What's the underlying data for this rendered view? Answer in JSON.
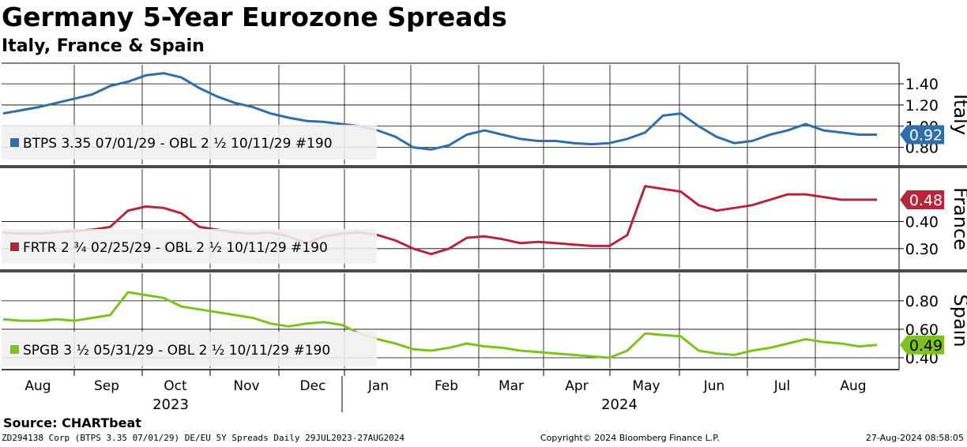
{
  "title": "Germany 5-Year Eurozone Spreads",
  "subtitle": "Italy, France & Spain",
  "source": "Source: CHARTbeat",
  "footer": {
    "left": "ZD294138 Corp (BTPS 3.35 07/01/29) DE/EU 5Y Spreads  Daily 29JUL2023-27AUG2024",
    "center": "Copyright© 2024 Bloomberg Finance L.P.",
    "right": "27-Aug-2024 08:58:05"
  },
  "chart_data": {
    "type": "line",
    "x_axis": {
      "months": [
        "Aug",
        "Sep",
        "Oct",
        "Nov",
        "Dec",
        "Jan",
        "Feb",
        "Mar",
        "Apr",
        "May",
        "Jun",
        "Jul",
        "Aug"
      ],
      "years": [
        "2023",
        "2024"
      ],
      "range": [
        "2023-07-29",
        "2024-08-27"
      ]
    },
    "panels": [
      {
        "name": "Italy",
        "legend": "BTPS 3.35 07/01/29 - OBL 2 ½ 10/11/29 #190",
        "color": "#2f6ea8",
        "last_value": "0.92",
        "last": 0.92,
        "yticks": [
          "1.40",
          "1.20",
          "1.00",
          "0.80"
        ],
        "ylim": [
          0.7,
          1.55
        ],
        "values": [
          1.12,
          1.15,
          1.18,
          1.22,
          1.26,
          1.3,
          1.38,
          1.42,
          1.48,
          1.5,
          1.46,
          1.36,
          1.28,
          1.22,
          1.18,
          1.12,
          1.08,
          1.05,
          1.04,
          1.02,
          1.0,
          0.96,
          0.9,
          0.8,
          0.78,
          0.82,
          0.92,
          0.96,
          0.92,
          0.88,
          0.86,
          0.86,
          0.84,
          0.83,
          0.84,
          0.88,
          0.94,
          1.1,
          1.12,
          1.0,
          0.9,
          0.84,
          0.86,
          0.92,
          0.96,
          1.02,
          0.96,
          0.94,
          0.92,
          0.92
        ]
      },
      {
        "name": "France",
        "legend": "FRTR 2 ¾ 02/25/29 - OBL 2 ½ 10/11/29 #190",
        "color": "#b5263a",
        "last_value": "0.48",
        "last": 0.48,
        "yticks": [
          "0.40",
          "0.30"
        ],
        "ylim": [
          0.25,
          0.57
        ],
        "values": [
          0.36,
          0.355,
          0.355,
          0.36,
          0.365,
          0.37,
          0.38,
          0.44,
          0.455,
          0.45,
          0.43,
          0.38,
          0.37,
          0.36,
          0.355,
          0.36,
          0.345,
          0.32,
          0.345,
          0.355,
          0.36,
          0.35,
          0.33,
          0.3,
          0.28,
          0.3,
          0.34,
          0.345,
          0.335,
          0.32,
          0.325,
          0.32,
          0.315,
          0.31,
          0.31,
          0.35,
          0.53,
          0.52,
          0.51,
          0.46,
          0.44,
          0.45,
          0.46,
          0.48,
          0.5,
          0.5,
          0.49,
          0.48,
          0.48,
          0.48
        ]
      },
      {
        "name": "Spain",
        "legend": "SPGB 3 ½ 05/31/29 - OBL 2 ½ 10/11/29 #190",
        "color": "#7dc21e",
        "last_value": "0.49",
        "last": 0.49,
        "yticks": [
          "0.80",
          "0.60",
          "0.40"
        ],
        "ylim": [
          0.35,
          0.96
        ],
        "values": [
          0.67,
          0.66,
          0.66,
          0.67,
          0.66,
          0.68,
          0.7,
          0.86,
          0.84,
          0.82,
          0.76,
          0.74,
          0.72,
          0.7,
          0.68,
          0.64,
          0.62,
          0.64,
          0.65,
          0.63,
          0.57,
          0.53,
          0.5,
          0.46,
          0.45,
          0.47,
          0.5,
          0.48,
          0.47,
          0.45,
          0.44,
          0.43,
          0.42,
          0.41,
          0.4,
          0.45,
          0.57,
          0.56,
          0.55,
          0.45,
          0.43,
          0.42,
          0.45,
          0.47,
          0.5,
          0.53,
          0.51,
          0.5,
          0.48,
          0.49
        ]
      }
    ]
  }
}
